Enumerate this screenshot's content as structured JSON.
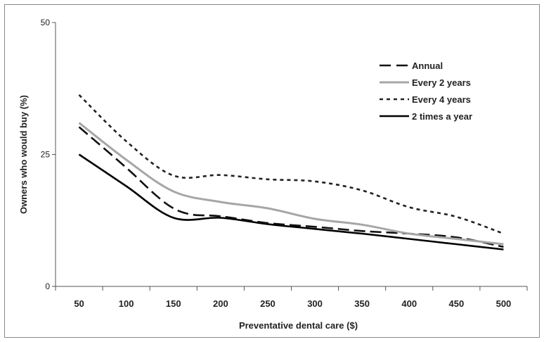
{
  "chart_data": {
    "type": "line",
    "title": "",
    "xlabel": "Preventative dental care ($)",
    "ylabel": "Owners who would buy (%)",
    "categories": [
      "50",
      "100",
      "150",
      "200",
      "250",
      "300",
      "350",
      "400",
      "450",
      "500"
    ],
    "ylim": [
      0,
      50
    ],
    "yticks": [
      "0",
      "25",
      "50"
    ],
    "grid": false,
    "legend_position": "top-right",
    "series": [
      {
        "name": "Annual",
        "color": "#111111",
        "dash": "long-dash",
        "points": [
          [
            50,
            30.2
          ],
          [
            100,
            22.5
          ],
          [
            130,
            17.5
          ],
          [
            150,
            14.8
          ],
          [
            170,
            13.6
          ],
          [
            200,
            13.3
          ],
          [
            250,
            12.0
          ],
          [
            300,
            11.3
          ],
          [
            350,
            10.5
          ],
          [
            400,
            10.0
          ],
          [
            450,
            9.3
          ],
          [
            500,
            7.5
          ]
        ]
      },
      {
        "name": "Every 2 years",
        "color": "#a6a6a6",
        "dash": "solid",
        "points": [
          [
            50,
            31.0
          ],
          [
            100,
            24.0
          ],
          [
            150,
            18.0
          ],
          [
            200,
            16.0
          ],
          [
            250,
            14.8
          ],
          [
            300,
            12.8
          ],
          [
            350,
            11.7
          ],
          [
            400,
            10.0
          ],
          [
            450,
            9.0
          ],
          [
            500,
            8.0
          ]
        ]
      },
      {
        "name": "Every 4 years",
        "color": "#222222",
        "dash": "dotted",
        "points": [
          [
            50,
            36.3
          ],
          [
            100,
            27.5
          ],
          [
            150,
            21.0
          ],
          [
            200,
            21.1
          ],
          [
            250,
            20.3
          ],
          [
            300,
            19.9
          ],
          [
            350,
            18.2
          ],
          [
            400,
            15.0
          ],
          [
            450,
            13.2
          ],
          [
            500,
            10.0
          ]
        ]
      },
      {
        "name": "2 times a year",
        "color": "#000000",
        "dash": "solid",
        "points": [
          [
            50,
            25.0
          ],
          [
            100,
            19.0
          ],
          [
            150,
            13.0
          ],
          [
            200,
            13.0
          ],
          [
            250,
            11.8
          ],
          [
            300,
            10.9
          ],
          [
            350,
            10.0
          ],
          [
            400,
            9.0
          ],
          [
            450,
            8.0
          ],
          [
            500,
            7.0
          ]
        ]
      }
    ]
  }
}
